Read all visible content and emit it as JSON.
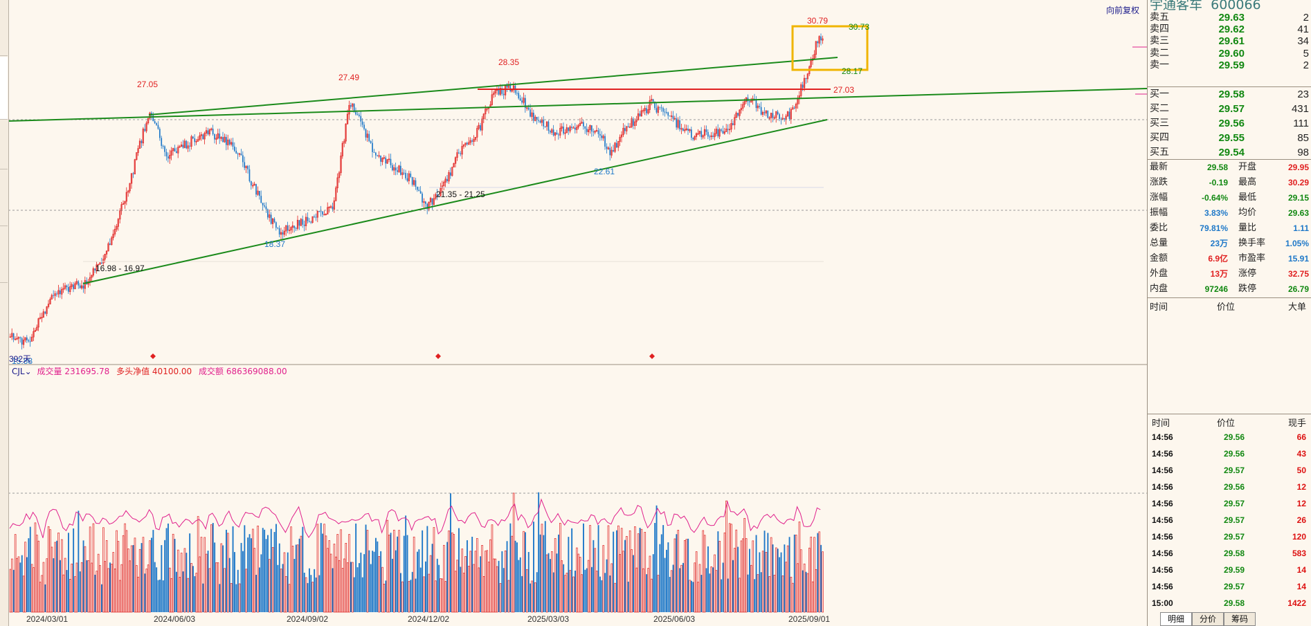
{
  "header": {
    "adjust_label": "向前复权",
    "stock_name": "宇通客车",
    "stock_code": "600066"
  },
  "price_labels": {
    "high_2024_06": "27.05",
    "high_2024_10": "27.49",
    "high_2025_01": "28.35",
    "resist_line": "27.03",
    "low_2024_09": "18.37",
    "low_2025_04": "22.61",
    "high_2025_09": "30.79",
    "box_top": "30.73",
    "box_bottom": "28.17",
    "range_a": "21.35 - 21.25",
    "range_b": "16.98 - 16.97",
    "first_low": "15.88",
    "days": "392天"
  },
  "indicator": {
    "name": "CJL",
    "vol_label": "成交量",
    "vol_value": "231695.78",
    "net_label": "多头净值",
    "net_value": "40100.00",
    "amt_label": "成交额",
    "amt_value": "686369088.00"
  },
  "dates": [
    "2024/03/01",
    "2024/06/03",
    "2024/09/02",
    "2024/12/02",
    "2025/03/03",
    "2025/06/03",
    "2025/09/01"
  ],
  "order_book": {
    "asks": [
      {
        "label": "卖五",
        "price": "29.63",
        "vol": "2"
      },
      {
        "label": "卖四",
        "price": "29.62",
        "vol": "41"
      },
      {
        "label": "卖三",
        "price": "29.61",
        "vol": "34"
      },
      {
        "label": "卖二",
        "price": "29.60",
        "vol": "5"
      },
      {
        "label": "卖一",
        "price": "29.59",
        "vol": "2"
      }
    ],
    "bids": [
      {
        "label": "买一",
        "price": "29.58",
        "vol": "23"
      },
      {
        "label": "买二",
        "price": "29.57",
        "vol": "431"
      },
      {
        "label": "买三",
        "price": "29.56",
        "vol": "111"
      },
      {
        "label": "买四",
        "price": "29.55",
        "vol": "85"
      },
      {
        "label": "买五",
        "price": "29.54",
        "vol": "98"
      }
    ]
  },
  "stats": [
    {
      "l1": "最新",
      "v1": "29.58",
      "c1": "green",
      "l2": "开盘",
      "v2": "29.95",
      "c2": "red"
    },
    {
      "l1": "涨跌",
      "v1": "-0.19",
      "c1": "green",
      "l2": "最高",
      "v2": "30.29",
      "c2": "red"
    },
    {
      "l1": "涨幅",
      "v1": "-0.64%",
      "c1": "green",
      "l2": "最低",
      "v2": "29.15",
      "c2": "green"
    },
    {
      "l1": "振幅",
      "v1": "3.83%",
      "c1": "blue",
      "l2": "均价",
      "v2": "29.63",
      "c2": "green"
    },
    {
      "l1": "委比",
      "v1": "79.81%",
      "c1": "blue",
      "l2": "量比",
      "v2": "1.11",
      "c2": "blue"
    },
    {
      "l1": "总量",
      "v1": "23万",
      "c1": "blue",
      "l2": "换手率",
      "v2": "1.05%",
      "c2": "blue"
    },
    {
      "l1": "金额",
      "v1": "6.9亿",
      "c1": "red",
      "l2": "市盈率",
      "v2": "15.91",
      "c2": "blue"
    },
    {
      "l1": "外盘",
      "v1": "13万",
      "c1": "red",
      "l2": "涨停",
      "v2": "32.75",
      "c2": "red"
    },
    {
      "l1": "内盘",
      "v1": "97246",
      "c1": "green",
      "l2": "跌停",
      "v2": "26.79",
      "c2": "green"
    }
  ],
  "big_order_header": {
    "time": "时间",
    "price": "价位",
    "big": "大单"
  },
  "ticks_header": {
    "time": "时间",
    "price": "价位",
    "vol": "现手"
  },
  "ticks": [
    {
      "time": "14:56",
      "price": "29.56",
      "vol": "66"
    },
    {
      "time": "14:56",
      "price": "29.56",
      "vol": "43"
    },
    {
      "time": "14:56",
      "price": "29.57",
      "vol": "50"
    },
    {
      "time": "14:56",
      "price": "29.56",
      "vol": "12"
    },
    {
      "time": "14:56",
      "price": "29.57",
      "vol": "12"
    },
    {
      "time": "14:56",
      "price": "29.57",
      "vol": "26"
    },
    {
      "time": "14:56",
      "price": "29.57",
      "vol": "120"
    },
    {
      "time": "14:56",
      "price": "29.58",
      "vol": "583"
    },
    {
      "time": "14:56",
      "price": "29.59",
      "vol": "14"
    },
    {
      "time": "14:56",
      "price": "29.57",
      "vol": "14"
    },
    {
      "time": "15:00",
      "price": "29.58",
      "vol": "1422"
    }
  ],
  "bottom_tabs": [
    "明细",
    "分价",
    "筹码"
  ],
  "colors": {
    "up": "#e02020",
    "down": "#1e78c8",
    "trend": "#1a7a1a",
    "box": "#f0b400",
    "ma": "#e0208c"
  }
}
